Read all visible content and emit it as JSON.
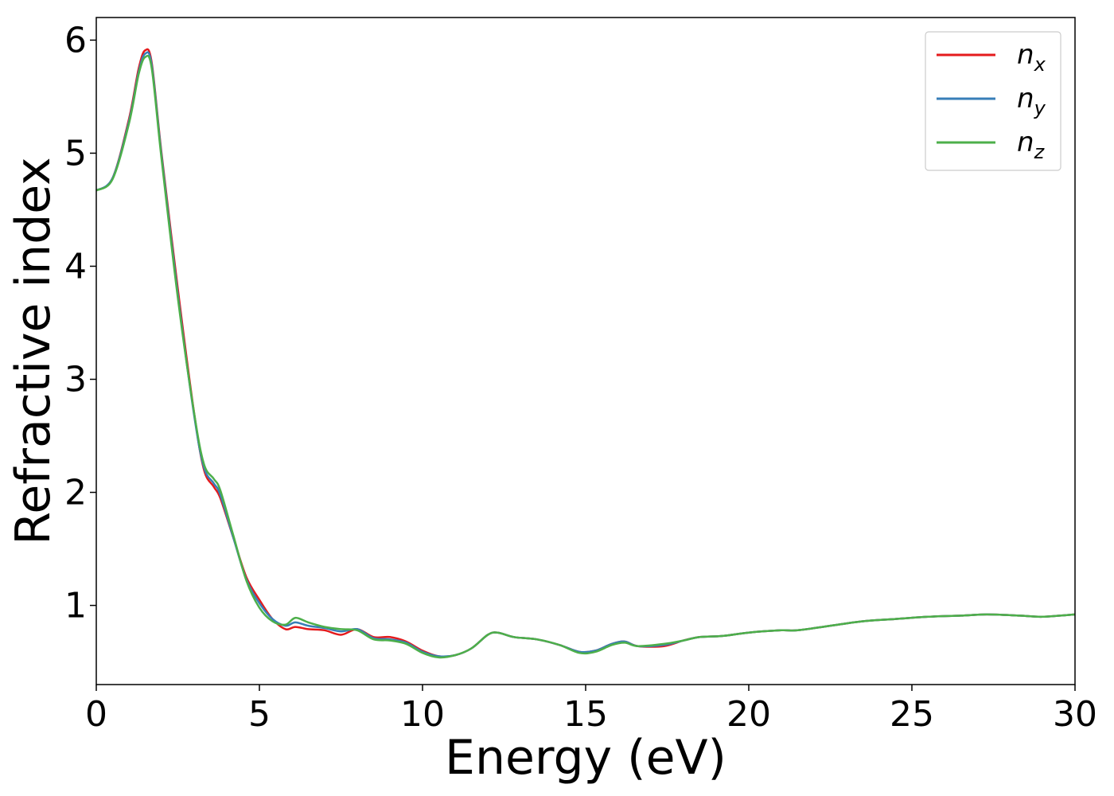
{
  "chart_data": {
    "type": "line",
    "title": "",
    "xlabel": "Energy (eV)",
    "ylabel": "Refractive index",
    "xlim": [
      0,
      30
    ],
    "ylim": [
      0.3,
      6.2
    ],
    "xticks": [
      0,
      5,
      10,
      15,
      20,
      25,
      30
    ],
    "yticks": [
      1,
      2,
      3,
      4,
      5,
      6
    ],
    "grid": false,
    "legend_position": "top-right",
    "series": [
      {
        "name": "n",
        "subscript": "x",
        "color": "#e41a1c",
        "points": [
          [
            0,
            4.67
          ],
          [
            0.5,
            4.78
          ],
          [
            1.0,
            5.3
          ],
          [
            1.3,
            5.75
          ],
          [
            1.5,
            5.91
          ],
          [
            1.7,
            5.8
          ],
          [
            2.0,
            5.0
          ],
          [
            2.5,
            3.8
          ],
          [
            3.0,
            2.7
          ],
          [
            3.3,
            2.2
          ],
          [
            3.6,
            2.05
          ],
          [
            3.8,
            1.95
          ],
          [
            4.2,
            1.6
          ],
          [
            4.6,
            1.25
          ],
          [
            5.0,
            1.05
          ],
          [
            5.4,
            0.88
          ],
          [
            5.8,
            0.79
          ],
          [
            6.1,
            0.81
          ],
          [
            6.5,
            0.79
          ],
          [
            7.0,
            0.78
          ],
          [
            7.5,
            0.74
          ],
          [
            8.0,
            0.79
          ],
          [
            8.5,
            0.72
          ],
          [
            9.0,
            0.72
          ],
          [
            9.5,
            0.68
          ],
          [
            10.0,
            0.6
          ],
          [
            10.5,
            0.55
          ],
          [
            11.0,
            0.56
          ],
          [
            11.5,
            0.62
          ],
          [
            12.0,
            0.74
          ],
          [
            12.3,
            0.76
          ],
          [
            12.8,
            0.72
          ],
          [
            13.5,
            0.7
          ],
          [
            14.2,
            0.65
          ],
          [
            14.8,
            0.59
          ],
          [
            15.3,
            0.6
          ],
          [
            15.8,
            0.66
          ],
          [
            16.2,
            0.68
          ],
          [
            16.6,
            0.64
          ],
          [
            17.4,
            0.64
          ],
          [
            18.0,
            0.69
          ],
          [
            18.5,
            0.72
          ],
          [
            19.2,
            0.73
          ],
          [
            20.0,
            0.76
          ],
          [
            21.0,
            0.78
          ],
          [
            21.5,
            0.78
          ],
          [
            22.5,
            0.82
          ],
          [
            23.5,
            0.86
          ],
          [
            24.5,
            0.88
          ],
          [
            25.5,
            0.9
          ],
          [
            26.5,
            0.91
          ],
          [
            27.3,
            0.92
          ],
          [
            28.3,
            0.91
          ],
          [
            29.0,
            0.9
          ],
          [
            30.0,
            0.92
          ]
        ]
      },
      {
        "name": "n",
        "subscript": "y",
        "color": "#377eb8",
        "points": [
          [
            0,
            4.67
          ],
          [
            0.5,
            4.78
          ],
          [
            1.0,
            5.28
          ],
          [
            1.3,
            5.72
          ],
          [
            1.5,
            5.88
          ],
          [
            1.7,
            5.78
          ],
          [
            2.0,
            4.98
          ],
          [
            2.5,
            3.75
          ],
          [
            3.0,
            2.68
          ],
          [
            3.3,
            2.22
          ],
          [
            3.6,
            2.08
          ],
          [
            3.8,
            1.98
          ],
          [
            4.2,
            1.6
          ],
          [
            4.6,
            1.23
          ],
          [
            5.0,
            1.02
          ],
          [
            5.4,
            0.88
          ],
          [
            5.8,
            0.82
          ],
          [
            6.1,
            0.85
          ],
          [
            6.5,
            0.82
          ],
          [
            7.0,
            0.8
          ],
          [
            7.5,
            0.77
          ],
          [
            8.0,
            0.79
          ],
          [
            8.5,
            0.71
          ],
          [
            9.0,
            0.7
          ],
          [
            9.5,
            0.67
          ],
          [
            10.0,
            0.59
          ],
          [
            10.5,
            0.55
          ],
          [
            11.0,
            0.56
          ],
          [
            11.5,
            0.62
          ],
          [
            12.0,
            0.74
          ],
          [
            12.3,
            0.76
          ],
          [
            12.8,
            0.72
          ],
          [
            13.5,
            0.7
          ],
          [
            14.2,
            0.65
          ],
          [
            14.8,
            0.59
          ],
          [
            15.3,
            0.6
          ],
          [
            15.8,
            0.66
          ],
          [
            16.2,
            0.68
          ],
          [
            16.6,
            0.64
          ],
          [
            17.4,
            0.65
          ],
          [
            18.0,
            0.69
          ],
          [
            18.5,
            0.72
          ],
          [
            19.2,
            0.73
          ],
          [
            20.0,
            0.76
          ],
          [
            21.0,
            0.78
          ],
          [
            21.5,
            0.78
          ],
          [
            22.5,
            0.82
          ],
          [
            23.5,
            0.86
          ],
          [
            24.5,
            0.88
          ],
          [
            25.5,
            0.9
          ],
          [
            26.5,
            0.91
          ],
          [
            27.3,
            0.92
          ],
          [
            28.3,
            0.91
          ],
          [
            29.0,
            0.9
          ],
          [
            30.0,
            0.92
          ]
        ]
      },
      {
        "name": "n",
        "subscript": "z",
        "color": "#4daf4a",
        "points": [
          [
            0,
            4.67
          ],
          [
            0.5,
            4.77
          ],
          [
            1.0,
            5.26
          ],
          [
            1.3,
            5.7
          ],
          [
            1.5,
            5.85
          ],
          [
            1.7,
            5.75
          ],
          [
            2.0,
            4.95
          ],
          [
            2.5,
            3.72
          ],
          [
            3.0,
            2.7
          ],
          [
            3.3,
            2.25
          ],
          [
            3.6,
            2.12
          ],
          [
            3.8,
            2.02
          ],
          [
            4.2,
            1.62
          ],
          [
            4.6,
            1.22
          ],
          [
            5.0,
            0.98
          ],
          [
            5.4,
            0.86
          ],
          [
            5.8,
            0.83
          ],
          [
            6.1,
            0.89
          ],
          [
            6.5,
            0.85
          ],
          [
            7.0,
            0.81
          ],
          [
            7.5,
            0.79
          ],
          [
            8.0,
            0.78
          ],
          [
            8.5,
            0.7
          ],
          [
            9.0,
            0.69
          ],
          [
            9.5,
            0.66
          ],
          [
            10.0,
            0.58
          ],
          [
            10.5,
            0.54
          ],
          [
            11.0,
            0.56
          ],
          [
            11.5,
            0.62
          ],
          [
            12.0,
            0.74
          ],
          [
            12.3,
            0.76
          ],
          [
            12.8,
            0.72
          ],
          [
            13.5,
            0.7
          ],
          [
            14.2,
            0.65
          ],
          [
            14.8,
            0.58
          ],
          [
            15.3,
            0.59
          ],
          [
            15.8,
            0.65
          ],
          [
            16.2,
            0.67
          ],
          [
            16.6,
            0.64
          ],
          [
            17.4,
            0.66
          ],
          [
            18.0,
            0.69
          ],
          [
            18.5,
            0.72
          ],
          [
            19.2,
            0.73
          ],
          [
            20.0,
            0.76
          ],
          [
            21.0,
            0.78
          ],
          [
            21.5,
            0.78
          ],
          [
            22.5,
            0.82
          ],
          [
            23.5,
            0.86
          ],
          [
            24.5,
            0.88
          ],
          [
            25.5,
            0.9
          ],
          [
            26.5,
            0.91
          ],
          [
            27.3,
            0.92
          ],
          [
            28.3,
            0.91
          ],
          [
            29.0,
            0.9
          ],
          [
            30.0,
            0.92
          ]
        ]
      }
    ]
  }
}
